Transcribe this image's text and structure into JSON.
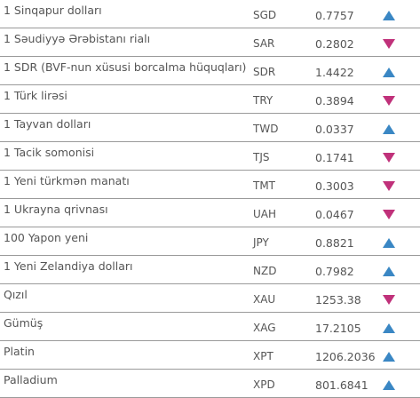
{
  "colors": {
    "up": "#3a87c4",
    "down": "#c0317a",
    "divider": "#9a9a9a",
    "text": "#555555"
  },
  "rows": [
    {
      "name": "1 Sinqapur dolları",
      "code": "SGD",
      "value": "0.7757",
      "trend": "up"
    },
    {
      "name": "1 Səudiyyə Ərəbistanı rialı",
      "code": "SAR",
      "value": "0.2802",
      "trend": "down"
    },
    {
      "name": "1 SDR (BVF-nun xüsusi borcalma hüquqları)",
      "code": "SDR",
      "value": "1.4422",
      "trend": "up"
    },
    {
      "name": "1 Türk lirəsi",
      "code": "TRY",
      "value": "0.3894",
      "trend": "down"
    },
    {
      "name": "1 Tayvan dolları",
      "code": "TWD",
      "value": "0.0337",
      "trend": "up"
    },
    {
      "name": "1 Tacik somonisi",
      "code": "TJS",
      "value": "0.1741",
      "trend": "down"
    },
    {
      "name": "1 Yeni türkmən manatı",
      "code": "TMT",
      "value": "0.3003",
      "trend": "down"
    },
    {
      "name": "1 Ukrayna qrivnası",
      "code": "UAH",
      "value": "0.0467",
      "trend": "down"
    },
    {
      "name": "100 Yapon yeni",
      "code": "JPY",
      "value": "0.8821",
      "trend": "up"
    },
    {
      "name": "1 Yeni Zelandiya dolları",
      "code": "NZD",
      "value": "0.7982",
      "trend": "up"
    },
    {
      "name": "Qızıl",
      "code": "XAU",
      "value": "1253.38",
      "trend": "down"
    },
    {
      "name": "Gümüş",
      "code": "XAG",
      "value": "17.2105",
      "trend": "up"
    },
    {
      "name": "Platin",
      "code": "XPT",
      "value": "1206.2036",
      "trend": "up"
    },
    {
      "name": "Palladium",
      "code": "XPD",
      "value": "801.6841",
      "trend": "up"
    }
  ]
}
